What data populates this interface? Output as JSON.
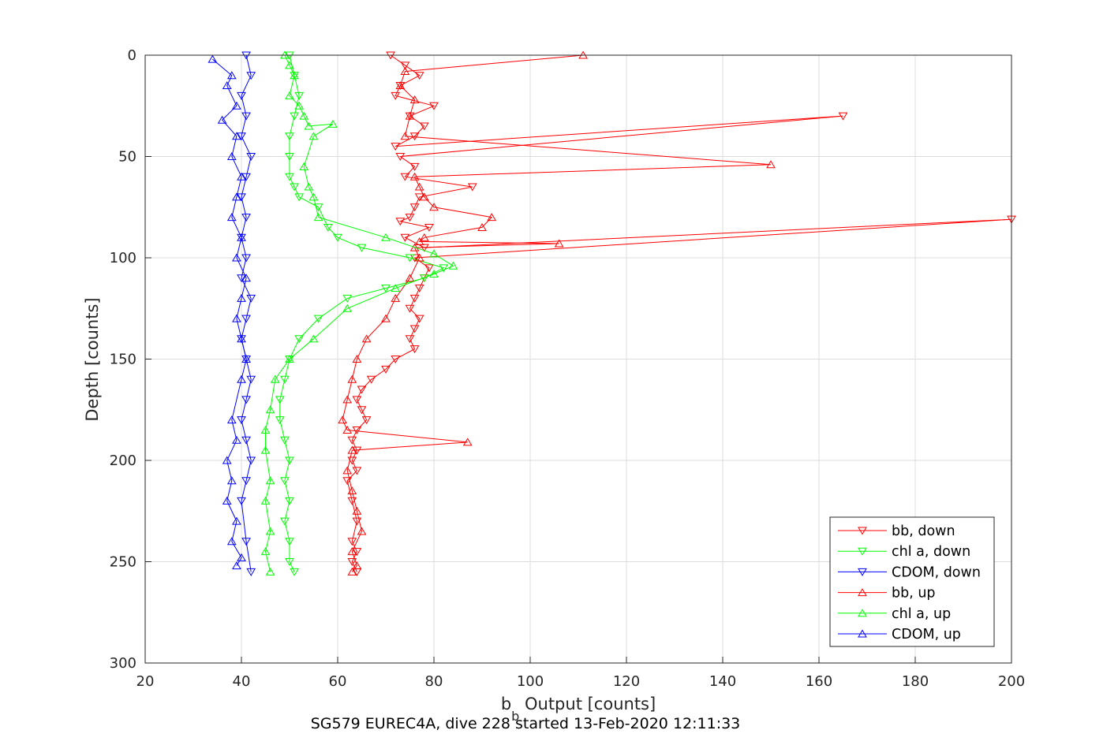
{
  "chart_data": {
    "type": "line",
    "title": "",
    "caption": "SG579 EUREC4A, dive 228 started 13-Feb-2020 12:11:33",
    "xlabel_base": "b",
    "xlabel_sub": "b",
    "xlabel_rest": " Output [counts]",
    "ylabel": "Depth [counts]",
    "xlim": [
      20,
      200
    ],
    "ylim": [
      0,
      300
    ],
    "y_reversed": true,
    "x_ticks": [
      "20",
      "40",
      "60",
      "80",
      "100",
      "120",
      "140",
      "160",
      "180",
      "200"
    ],
    "y_ticks": [
      "0",
      "50",
      "100",
      "150",
      "200",
      "250",
      "300"
    ],
    "grid": true,
    "legend_position": "bottom-right",
    "series": [
      {
        "name": "bb, down",
        "color": "#ff0000",
        "marker": "triangle-down",
        "x": [
          71,
          74,
          77,
          73,
          72,
          80,
          75,
          78,
          76,
          72,
          165,
          73,
          76,
          74,
          88,
          77,
          76,
          75,
          73,
          79,
          74,
          78,
          200,
          76,
          79,
          78,
          77,
          76,
          75,
          77,
          76,
          75,
          76,
          72,
          70,
          67,
          65,
          64,
          65,
          66,
          64,
          63,
          64,
          63,
          64,
          62,
          63,
          64,
          63,
          64,
          63,
          64
        ],
        "y": [
          0,
          5,
          10,
          15,
          20,
          25,
          30,
          35,
          40,
          45,
          30,
          50,
          55,
          60,
          65,
          70,
          75,
          80,
          82,
          85,
          90,
          95,
          81,
          100,
          105,
          110,
          115,
          120,
          125,
          130,
          135,
          140,
          145,
          150,
          155,
          160,
          165,
          170,
          175,
          180,
          185,
          190,
          195,
          200,
          205,
          210,
          220,
          230,
          240,
          245,
          250,
          255
        ]
      },
      {
        "name": "chl a, down",
        "color": "#00ff00",
        "marker": "triangle-down",
        "x": [
          50,
          51,
          52,
          51,
          50,
          50,
          50,
          51,
          52,
          56,
          58,
          60,
          65,
          75,
          82,
          78,
          70,
          62,
          56,
          52,
          50,
          49,
          48,
          48,
          49,
          50,
          49,
          50,
          49,
          50,
          50,
          51
        ],
        "y": [
          0,
          10,
          20,
          30,
          40,
          50,
          60,
          65,
          70,
          75,
          85,
          90,
          95,
          100,
          105,
          110,
          115,
          120,
          130,
          140,
          150,
          160,
          170,
          180,
          190,
          200,
          210,
          220,
          230,
          240,
          250,
          255
        ]
      },
      {
        "name": "CDOM, down",
        "color": "#0000ff",
        "marker": "triangle-down",
        "x": [
          41,
          42,
          40,
          41,
          40,
          42,
          41,
          40,
          41,
          40,
          41,
          40,
          42,
          41,
          40,
          41,
          42,
          41,
          40,
          41,
          42,
          41,
          40,
          41,
          42
        ],
        "y": [
          0,
          10,
          20,
          30,
          40,
          50,
          60,
          70,
          80,
          90,
          100,
          110,
          120,
          130,
          140,
          150,
          160,
          170,
          180,
          190,
          200,
          210,
          220,
          240,
          255
        ]
      },
      {
        "name": "bb, up",
        "color": "#ff0000",
        "marker": "triangle-up",
        "x": [
          111,
          74,
          73,
          76,
          75,
          74,
          150,
          76,
          77,
          78,
          80,
          92,
          90,
          78,
          77,
          106,
          76,
          77,
          75,
          72,
          70,
          66,
          64,
          63,
          62,
          61,
          62,
          87,
          63,
          62,
          63,
          64,
          65,
          63,
          64,
          63
        ],
        "y": [
          0,
          8,
          15,
          22,
          30,
          40,
          54,
          60,
          65,
          70,
          75,
          80,
          85,
          90,
          92,
          93,
          95,
          100,
          110,
          120,
          130,
          140,
          150,
          160,
          170,
          180,
          185,
          191,
          195,
          205,
          215,
          225,
          235,
          245,
          252,
          255
        ]
      },
      {
        "name": "chl a, up",
        "color": "#00ff00",
        "marker": "triangle-up",
        "x": [
          49,
          50,
          51,
          50,
          52,
          53,
          54,
          59,
          55,
          53,
          54,
          55,
          56,
          70,
          80,
          84,
          80,
          72,
          62,
          55,
          50,
          47,
          46,
          45,
          45,
          46,
          45,
          46,
          45,
          46
        ],
        "y": [
          0,
          5,
          10,
          20,
          25,
          30,
          35,
          34,
          40,
          55,
          65,
          70,
          80,
          90,
          98,
          104,
          108,
          115,
          125,
          140,
          150,
          160,
          175,
          185,
          195,
          210,
          220,
          235,
          245,
          255
        ]
      },
      {
        "name": "CDOM, up",
        "color": "#0000ff",
        "marker": "triangle-up",
        "x": [
          34,
          38,
          37,
          39,
          36,
          39,
          38,
          40,
          39,
          38,
          40,
          39,
          41,
          40,
          39,
          40,
          41,
          40,
          38,
          39,
          37,
          38,
          37,
          39,
          38,
          40,
          39
        ],
        "y": [
          2,
          10,
          15,
          25,
          32,
          40,
          50,
          60,
          70,
          80,
          90,
          100,
          110,
          120,
          130,
          140,
          150,
          160,
          180,
          190,
          200,
          210,
          220,
          230,
          240,
          248,
          252
        ]
      }
    ]
  }
}
